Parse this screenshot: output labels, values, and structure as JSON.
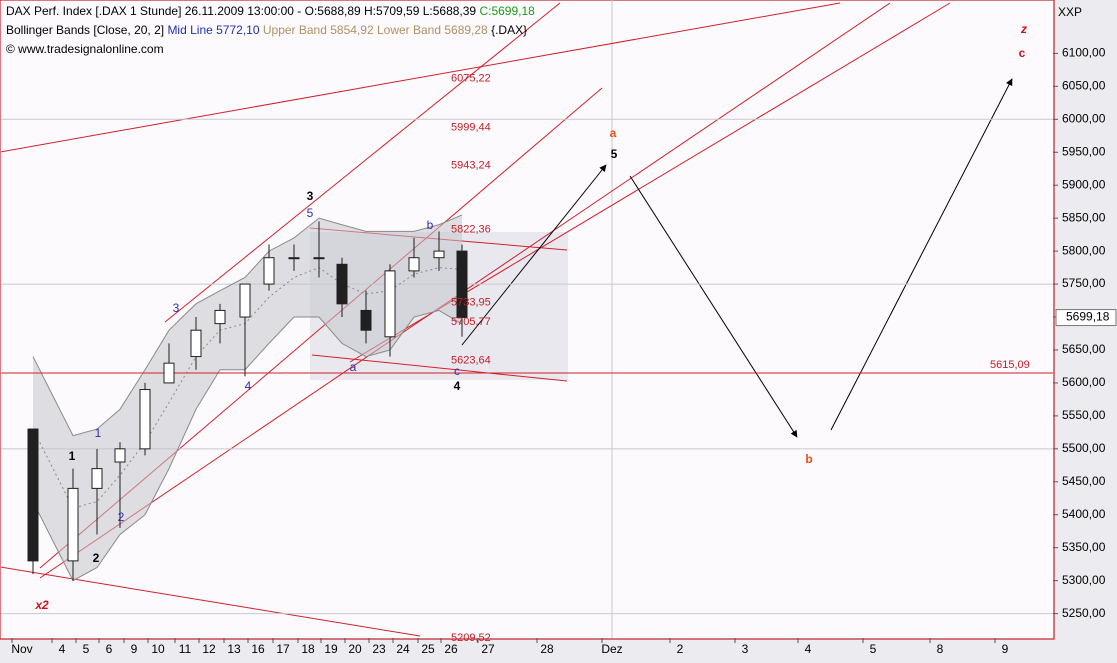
{
  "chart_data": {
    "type": "candlestick",
    "title": "DAX Perf. Index [.DAX  1 Stunde] 26.11.2009 13:00:00 - O:5688,89 H:5709,59 L:5688,39",
    "title_close": "C:5699,18",
    "indicator": "Bollinger Bands [Close, 20, 2]",
    "indicator_mid": "Mid Line 5772,10",
    "indicator_upper": "Upper Band 5854,92",
    "indicator_lower": "Lower Band 5689,28",
    "indicator_symbol": "{.DAX}",
    "source": "© www.tradesignalonline.com",
    "axis_name": "XXP",
    "categories": [
      "Nov",
      "4",
      "5",
      "6",
      "9",
      "10",
      "11",
      "12",
      "13",
      "16",
      "17",
      "18",
      "19",
      "20",
      "23",
      "24",
      "25",
      "26",
      "27",
      "28",
      "Dez",
      "2",
      "3",
      "4",
      "5",
      "8",
      "9"
    ],
    "ohlc": {
      "open": [
        5530,
        5330,
        5440,
        5480,
        5500,
        5600,
        5640,
        5690,
        5700,
        5750,
        5790,
        5790,
        5780,
        5710,
        5670,
        5770,
        5790,
        5800,
        null,
        null,
        null,
        null,
        null,
        null,
        null,
        null,
        null
      ],
      "high": [
        5530,
        5470,
        5500,
        5510,
        5600,
        5660,
        5700,
        5720,
        5720,
        5810,
        5810,
        5845,
        5790,
        5740,
        5780,
        5820,
        5830,
        5810,
        null,
        null,
        null,
        null,
        null,
        null,
        null,
        null,
        null
      ],
      "low": [
        5310,
        5300,
        5370,
        5380,
        5490,
        5600,
        5620,
        5660,
        5610,
        5740,
        5770,
        5760,
        5700,
        5660,
        5640,
        5760,
        5770,
        5670,
        null,
        null,
        null,
        null,
        null,
        null,
        null,
        null,
        null
      ],
      "close": [
        5330,
        5440,
        5470,
        5500,
        5590,
        5630,
        5680,
        5710,
        5750,
        5790,
        5790,
        5790,
        5720,
        5680,
        5770,
        5790,
        5800,
        5699.18,
        null,
        null,
        null,
        null,
        null,
        null,
        null,
        null,
        null
      ],
      "color_up": "#ffffff",
      "color_down": "#202020"
    },
    "bollinger": {
      "upper": [
        5640,
        5520,
        5530,
        5560,
        5620,
        5680,
        5720,
        5740,
        5760,
        5800,
        5820,
        5850,
        5840,
        5830,
        5830,
        5830,
        5840,
        5854.92,
        null,
        null,
        null,
        null,
        null,
        null,
        null,
        null,
        null
      ],
      "mid": [
        5530,
        5410,
        5420,
        5460,
        5510,
        5570,
        5640,
        5680,
        5690,
        5730,
        5760,
        5775,
        5750,
        5735,
        5740,
        5765,
        5775,
        5772.1,
        null,
        null,
        null,
        null,
        null,
        null,
        null,
        null,
        null
      ],
      "lower": [
        5420,
        5300,
        5320,
        5370,
        5400,
        5470,
        5560,
        5620,
        5620,
        5660,
        5700,
        5700,
        5660,
        5640,
        5650,
        5700,
        5710,
        5689.28,
        null,
        null,
        null,
        null,
        null,
        null,
        null,
        null,
        null
      ],
      "color": "#8a8a8a"
    },
    "last_label": "5699,18",
    "price_levels": [
      {
        "value": 6075.22,
        "label": "6075,22"
      },
      {
        "value": 5999.44,
        "label": "5999,44"
      },
      {
        "value": 5943.24,
        "label": "5943,24"
      },
      {
        "value": 5822.36,
        "label": "5822,36"
      },
      {
        "value": 5733.95,
        "label": "5733,95"
      },
      {
        "value": 5705.77,
        "label": "5705,77"
      },
      {
        "value": 5623.64,
        "label": "5623,64"
      },
      {
        "value": 5615.09,
        "label": "5615,09"
      },
      {
        "value": 5209.52,
        "label": "5209,52"
      }
    ],
    "annotations": [
      "3",
      "5",
      "b",
      "3",
      "4",
      "1",
      "1",
      "2",
      "2",
      "a",
      "c",
      "4",
      "5",
      "a",
      "b",
      "z",
      "c",
      "x2"
    ],
    "ylim": [
      5213,
      6181
    ],
    "yticks": [
      {
        "value": 5250,
        "label": "5250,00"
      },
      {
        "value": 5300,
        "label": "5300,00"
      },
      {
        "value": 5350,
        "label": "5350,00"
      },
      {
        "value": 5400,
        "label": "5400,00"
      },
      {
        "value": 5450,
        "label": "5450,00"
      },
      {
        "value": 5500,
        "label": "5500,00"
      },
      {
        "value": 5550,
        "label": "5550,00"
      },
      {
        "value": 5600,
        "label": "5600,00"
      },
      {
        "value": 5650,
        "label": "5650,00"
      },
      {
        "value": 5700,
        "label": "5700,00"
      },
      {
        "value": 5750,
        "label": "5750,00"
      },
      {
        "value": 5800,
        "label": "5800,00"
      },
      {
        "value": 5850,
        "label": "5850,00"
      },
      {
        "value": 5900,
        "label": "5900,00"
      },
      {
        "value": 5950,
        "label": "5950,00"
      },
      {
        "value": 6000,
        "label": "6000,00"
      },
      {
        "value": 6050,
        "label": "6050,00"
      },
      {
        "value": 6100,
        "label": "6100,00"
      }
    ],
    "grid": true
  }
}
